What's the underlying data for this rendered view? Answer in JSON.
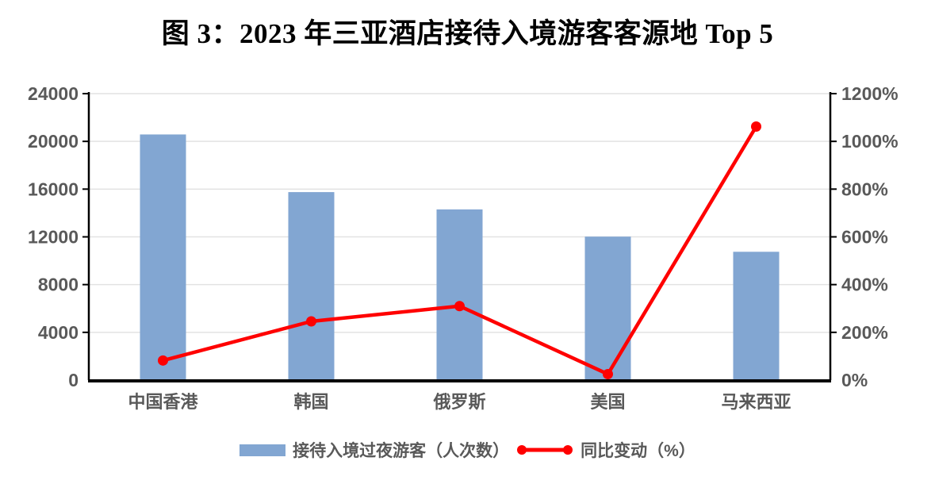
{
  "title": "图 3：2023 年三亚酒店接待入境游客客源地 Top 5",
  "colors": {
    "bar": "#82A6D2",
    "line": "#FF0000",
    "axis_text": "#595959",
    "category_text": "#595959",
    "legend_text": "#595959",
    "gridline": "#E2E2E2",
    "axis_line": "#000000",
    "title_text": "#000000",
    "background": "#FFFFFF"
  },
  "legend": [
    {
      "type": "bar",
      "label": "接待入境过夜游客（人次数）"
    },
    {
      "type": "line",
      "label": "同比变动（%）"
    }
  ],
  "chart_data": {
    "type": "combo-bar-line",
    "title": "图 3：2023 年三亚酒店接待入境游客客源地 Top 5",
    "categories": [
      "中国香港",
      "韩国",
      "俄罗斯",
      "美国",
      "马来西亚"
    ],
    "series": [
      {
        "name": "接待入境过夜游客（人次数）",
        "type": "bar",
        "axis": "left",
        "values": [
          20580,
          15750,
          14300,
          12020,
          10750
        ]
      },
      {
        "name": "同比变动（%）",
        "type": "line",
        "axis": "right",
        "values": [
          82,
          246,
          310,
          25,
          1062
        ]
      }
    ],
    "left_axis": {
      "min": 0,
      "max": 24000,
      "step": 4000,
      "ticks": [
        "0",
        "4000",
        "8000",
        "12000",
        "16000",
        "20000",
        "24000"
      ]
    },
    "right_axis": {
      "min": 0,
      "max": 1200,
      "step": 200,
      "ticks": [
        "0%",
        "200%",
        "400%",
        "600%",
        "800%",
        "1000%",
        "1200%"
      ],
      "unit": "%"
    },
    "grid": "horizontal",
    "legend_position": "bottom"
  }
}
